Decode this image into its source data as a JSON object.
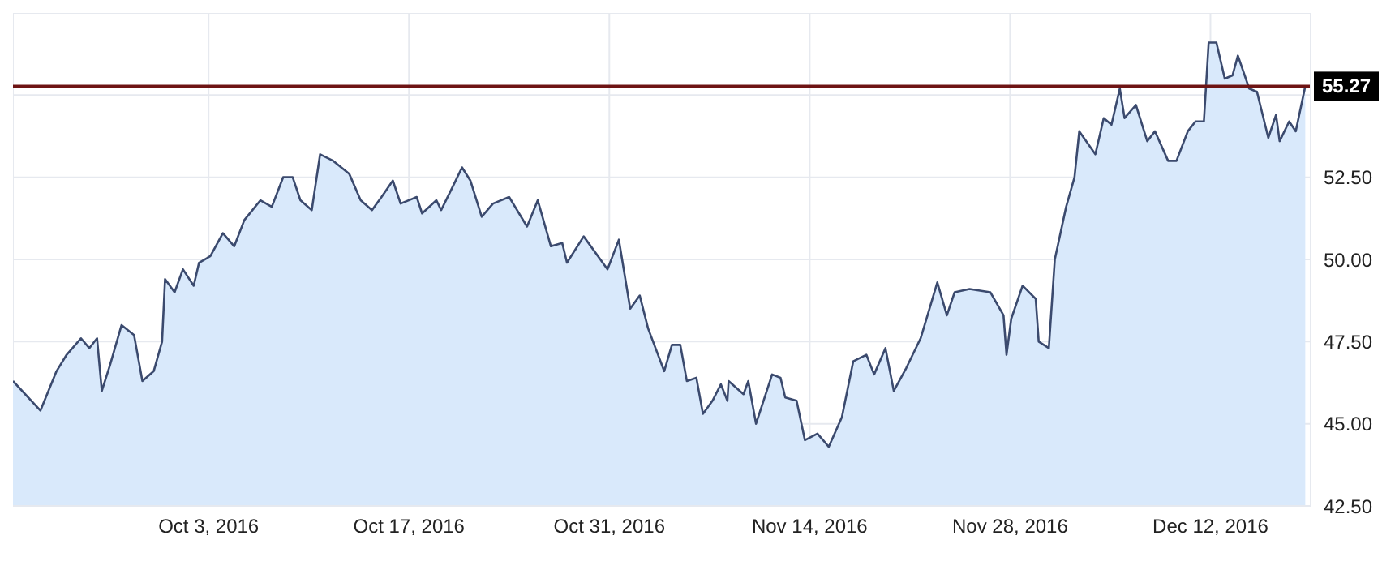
{
  "chart_data": {
    "type": "area",
    "x": [
      "2016-09-19T08:00",
      "2016-09-21T06:00",
      "2016-09-22T09:00",
      "2016-09-23T02:00",
      "2016-09-24T02:00",
      "2016-09-24T16:00",
      "2016-09-25T05:00",
      "2016-09-25T13:00",
      "2016-09-26T03:00",
      "2016-09-26T22:00",
      "2016-09-27T19:00",
      "2016-09-28T09:00",
      "2016-09-29T04:00",
      "2016-09-29T18:00",
      "2016-09-29T23:00",
      "2016-09-30T15:00",
      "2016-10-01T05:00",
      "2016-10-01T23:00",
      "2016-10-02T08:00",
      "2016-10-03T03:00",
      "2016-10-04T00:00",
      "2016-10-04T19:00",
      "2016-10-05T12:00",
      "2016-10-06T15:00",
      "2016-10-07T10:00",
      "2016-10-08T05:00",
      "2016-10-08T21:00",
      "2016-10-09T10:00",
      "2016-10-10T05:00",
      "2016-10-10T19:00",
      "2016-10-11T17:00",
      "2016-10-12T20:00",
      "2016-10-13T15:00",
      "2016-10-14T10:00",
      "2016-10-15T02:00",
      "2016-10-15T21:00",
      "2016-10-16T10:00",
      "2016-10-17T13:00",
      "2016-10-17T22:00",
      "2016-10-18T22:00",
      "2016-10-19T06:00",
      "2016-10-20T01:00",
      "2016-10-20T17:00",
      "2016-10-21T07:00",
      "2016-10-22T02:00",
      "2016-10-22T21:00",
      "2016-10-24T00:00",
      "2016-10-25T06:00",
      "2016-10-26T00:00",
      "2016-10-26T22:00",
      "2016-10-27T17:00",
      "2016-10-28T01:00",
      "2016-10-29T05:00",
      "2016-10-30T21:00",
      "2016-10-31T16:00",
      "2016-11-01T11:00",
      "2016-11-02T03:00",
      "2016-11-02T17:00",
      "2016-11-03T20:00",
      "2016-11-04T09:00",
      "2016-11-04T23:00",
      "2016-11-05T10:00",
      "2016-11-06T02:00",
      "2016-11-06T13:00",
      "2016-11-07T05:00",
      "2016-11-07T19:00",
      "2016-11-08T06:00",
      "2016-11-08T08:00",
      "2016-11-09T09:00",
      "2016-11-09T17:00",
      "2016-11-10T06:00",
      "2016-11-11T09:00",
      "2016-11-11T23:00",
      "2016-11-12T07:00",
      "2016-11-13T02:00",
      "2016-11-13T16:00",
      "2016-11-14T13:00",
      "2016-11-15T08:00",
      "2016-11-16T06:00",
      "2016-11-17T01:00",
      "2016-11-17T23:00",
      "2016-11-18T12:00",
      "2016-11-19T07:00",
      "2016-11-19T21:00",
      "2016-11-20T18:00",
      "2016-11-21T18:00",
      "2016-11-22T22:00",
      "2016-11-23T14:00",
      "2016-11-24T03:00",
      "2016-11-25T04:00",
      "2016-11-26T15:00",
      "2016-11-27T13:00",
      "2016-11-27T18:00",
      "2016-11-28T02:00",
      "2016-11-28T21:00",
      "2016-11-29T19:00",
      "2016-11-30T00:00",
      "2016-11-30T17:00",
      "2016-12-01T03:00",
      "2016-12-01T22:00",
      "2016-12-02T12:00",
      "2016-12-02T20:00",
      "2016-12-03T23:00",
      "2016-12-04T13:00",
      "2016-12-05T02:00",
      "2016-12-05T16:00",
      "2016-12-06T00:00",
      "2016-12-06T19:00",
      "2016-12-07T14:00",
      "2016-12-08T03:00",
      "2016-12-09T01:00",
      "2016-12-09T15:00",
      "2016-12-10T10:00",
      "2016-12-10T23:00",
      "2016-12-11T13:00",
      "2016-12-11T21:00",
      "2016-12-12T10:00",
      "2016-12-13T00:00",
      "2016-12-13T13:00",
      "2016-12-13T22:00",
      "2016-12-14T17:00",
      "2016-12-15T06:00",
      "2016-12-16T01:00",
      "2016-12-16T14:00",
      "2016-12-16T20:00",
      "2016-12-17T12:00",
      "2016-12-17T23:00",
      "2016-12-18T15:00"
    ],
    "series": [
      {
        "color": "#3b4a6e",
        "values": [
          46.3,
          45.4,
          46.6,
          47.1,
          47.6,
          47.3,
          47.6,
          46.0,
          46.8,
          48.0,
          47.7,
          46.3,
          46.6,
          47.5,
          49.4,
          49.0,
          49.7,
          49.2,
          49.9,
          50.1,
          50.8,
          50.4,
          51.2,
          51.8,
          51.6,
          52.5,
          52.5,
          51.8,
          51.5,
          53.2,
          53.0,
          52.6,
          51.8,
          51.5,
          51.9,
          52.4,
          51.7,
          51.9,
          51.4,
          51.8,
          51.5,
          52.2,
          52.8,
          52.4,
          51.3,
          51.7,
          51.9,
          51.0,
          51.8,
          50.4,
          50.5,
          49.9,
          50.7,
          49.7,
          50.6,
          48.5,
          48.9,
          47.9,
          46.6,
          47.4,
          47.4,
          46.3,
          46.4,
          45.3,
          45.7,
          46.2,
          45.7,
          46.3,
          45.9,
          46.3,
          45.0,
          46.5,
          46.4,
          45.8,
          45.7,
          44.5,
          44.7,
          44.3,
          45.2,
          46.9,
          47.1,
          46.5,
          47.3,
          46.0,
          46.7,
          47.6,
          49.3,
          48.3,
          49.0,
          49.1,
          49.0,
          48.3,
          47.1,
          48.2,
          49.2,
          48.8,
          47.5,
          47.3,
          50.0,
          51.6,
          52.5,
          53.9,
          53.2,
          54.3,
          54.1,
          55.2,
          54.3,
          54.7,
          53.6,
          53.9,
          53.0,
          53.0,
          53.9,
          54.2,
          54.2,
          56.6,
          56.6,
          55.5,
          55.6,
          56.2,
          55.2,
          55.1,
          53.7,
          54.4,
          53.6,
          54.2,
          53.9,
          55.27
        ]
      }
    ],
    "xlim": [
      "2016-09-19T08:00",
      "2016-12-19T00:00"
    ],
    "xticks": [
      {
        "value": "2016-10-03",
        "label": "Oct 3, 2016"
      },
      {
        "value": "2016-10-17",
        "label": "Oct 17, 2016"
      },
      {
        "value": "2016-10-31",
        "label": "Oct 31, 2016"
      },
      {
        "value": "2016-11-14",
        "label": "Nov 14, 2016"
      },
      {
        "value": "2016-11-28",
        "label": "Nov 28, 2016"
      },
      {
        "value": "2016-12-12",
        "label": "Dec 12, 2016"
      }
    ],
    "ylim": [
      42.5,
      57.5
    ],
    "yticks": [
      {
        "value": 42.5,
        "label": "42.50"
      },
      {
        "value": 45,
        "label": "45.00"
      },
      {
        "value": 47.5,
        "label": "47.50"
      },
      {
        "value": 50,
        "label": "50.00"
      },
      {
        "value": 52.5,
        "label": "52.50"
      },
      {
        "value": 55,
        "label": null
      },
      {
        "value": 57.5,
        "label": null
      }
    ],
    "ref_lines": [
      {
        "axis": "y",
        "value": 55.27,
        "label": "55.27",
        "color": "#6e1414"
      }
    ],
    "grid": true,
    "marker": "none",
    "line_style": "solid"
  }
}
